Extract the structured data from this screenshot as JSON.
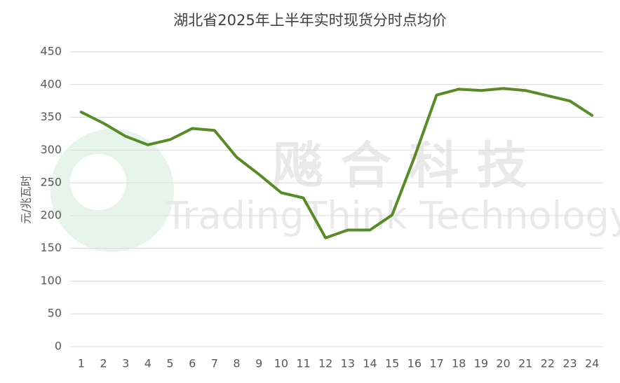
{
  "chart_data": {
    "type": "line",
    "title": "湖北省2025年上半年实时现货分时点均价",
    "y_label": "元/兆瓦时",
    "categories": [
      "1",
      "2",
      "3",
      "4",
      "5",
      "6",
      "7",
      "8",
      "9",
      "10",
      "11",
      "12",
      "13",
      "14",
      "15",
      "16",
      "17",
      "18",
      "19",
      "20",
      "21",
      "22",
      "23",
      "24"
    ],
    "series": [
      {
        "name": "均价",
        "color": "#578b25",
        "values": [
          358,
          341,
          321,
          308,
          316,
          333,
          330,
          289,
          263,
          235,
          227,
          166,
          178,
          178,
          201,
          289,
          384,
          393,
          391,
          394,
          391,
          383,
          375,
          353
        ]
      }
    ],
    "ylim": [
      0,
      450
    ],
    "yticks": [
      0,
      50,
      100,
      150,
      200,
      250,
      300,
      350,
      400,
      450
    ],
    "grid": true,
    "watermark": {
      "text": "飚 合 科 技",
      "subtext": "TradingThink Technology"
    }
  }
}
